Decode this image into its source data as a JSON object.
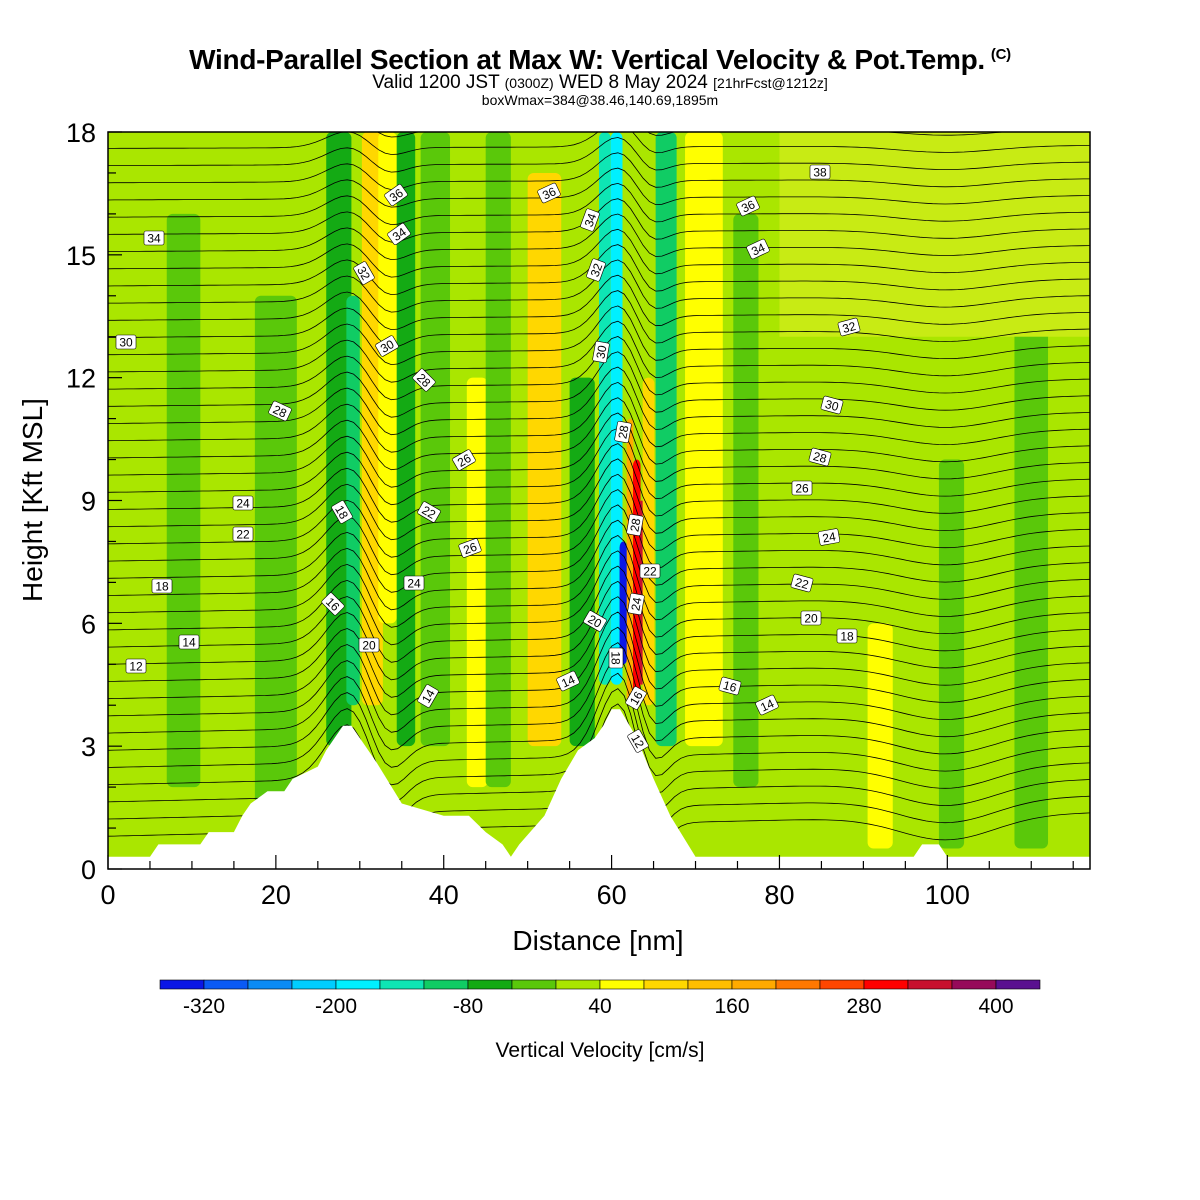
{
  "header": {
    "title": "Wind-Parallel Section at Max W: Vertical Velocity & Pot.Temp.",
    "copyright": "(C)",
    "valid_prefix": "Valid 1200 JST",
    "valid_utc": "(0300Z)",
    "valid_date": "WED 8 May 2024",
    "forecast": "[21hrFcst@1212z]",
    "boxwmax": "boxWmax=384@38.46,140.69,1895m"
  },
  "colors": {
    "blue": "#0a16e6",
    "lightblue": "#0b8bf5",
    "cyan": "#00f0ff",
    "teal": "#0ee6b4",
    "green1": "#10cc64",
    "green2": "#14aa14",
    "green3": "#5ac80a",
    "lime": "#aae600",
    "yellow": "#ffff00",
    "gold": "#ffd700",
    "orange": "#ffaa00",
    "red": "#ff0000",
    "crimson": "#c8102e",
    "purple": "#5a1090"
  },
  "chart_data": {
    "type": "heatmap",
    "xlabel": "Distance [nm]",
    "ylabel": "Height [Kft MSL]",
    "xlim": [
      0,
      117
    ],
    "ylim": [
      0,
      18
    ],
    "x_ticks": [
      0,
      20,
      40,
      60,
      80,
      100
    ],
    "y_ticks": [
      0,
      3,
      6,
      9,
      12,
      15,
      18
    ],
    "colorbar": {
      "label": "Vertical Velocity [cm/s]",
      "tick_labels": [
        "-320",
        "-200",
        "-80",
        "40",
        "160",
        "280",
        "400"
      ],
      "tick_values": [
        -320,
        -200,
        -80,
        40,
        160,
        280,
        400
      ],
      "levels": [
        -360,
        -320,
        -280,
        -240,
        -200,
        -160,
        -120,
        -80,
        -40,
        0,
        40,
        80,
        120,
        160,
        200,
        240,
        280,
        320,
        360,
        400,
        440
      ],
      "colors": [
        "#0a16e6",
        "#0a5af5",
        "#0b8bf5",
        "#00cdff",
        "#00f0ff",
        "#0ee6b4",
        "#10cc64",
        "#14aa14",
        "#5ac80a",
        "#aae600",
        "#ffff00",
        "#ffd700",
        "#ffbe00",
        "#ffaa00",
        "#ff7800",
        "#ff4600",
        "#ff0000",
        "#c8102e",
        "#960a5a",
        "#5a1090"
      ]
    },
    "theta_contour_labels": [
      "34",
      "30",
      "28",
      "24",
      "22",
      "18",
      "14",
      "12",
      "36",
      "34",
      "32",
      "30",
      "28",
      "26",
      "18",
      "16",
      "20",
      "24",
      "22",
      "26",
      "14",
      "36",
      "34",
      "32",
      "30",
      "28",
      "28",
      "22",
      "24",
      "20",
      "18",
      "16",
      "12",
      "14",
      "38",
      "36",
      "34",
      "32",
      "30",
      "28",
      "26",
      "24",
      "22",
      "20",
      "18",
      "16",
      "14"
    ],
    "terrain_profile": [
      [
        0,
        0.3
      ],
      [
        5,
        0.3
      ],
      [
        6,
        0.6
      ],
      [
        11,
        0.6
      ],
      [
        12,
        0.9
      ],
      [
        15,
        0.9
      ],
      [
        16,
        1.3
      ],
      [
        17,
        1.6
      ],
      [
        19,
        1.9
      ],
      [
        21,
        1.9
      ],
      [
        22,
        2.2
      ],
      [
        25,
        2.5
      ],
      [
        26,
        2.9
      ],
      [
        27,
        3.2
      ],
      [
        28,
        3.5
      ],
      [
        29,
        3.5
      ],
      [
        30,
        3.2
      ],
      [
        32,
        2.6
      ],
      [
        35,
        1.6
      ],
      [
        40,
        1.3
      ],
      [
        43,
        1.3
      ],
      [
        45,
        0.9
      ],
      [
        47,
        0.6
      ],
      [
        48,
        0.3
      ],
      [
        49,
        0.6
      ],
      [
        52,
        1.3
      ],
      [
        54,
        2.2
      ],
      [
        56,
        2.9
      ],
      [
        58,
        3.2
      ],
      [
        59,
        3.5
      ],
      [
        60,
        3.9
      ],
      [
        61,
        3.9
      ],
      [
        63,
        3.2
      ],
      [
        65,
        2.2
      ],
      [
        67,
        1.3
      ],
      [
        70,
        0.3
      ],
      [
        96,
        0.3
      ],
      [
        97,
        0.6
      ],
      [
        99,
        0.6
      ],
      [
        100,
        0.3
      ],
      [
        117,
        0.3
      ]
    ]
  }
}
